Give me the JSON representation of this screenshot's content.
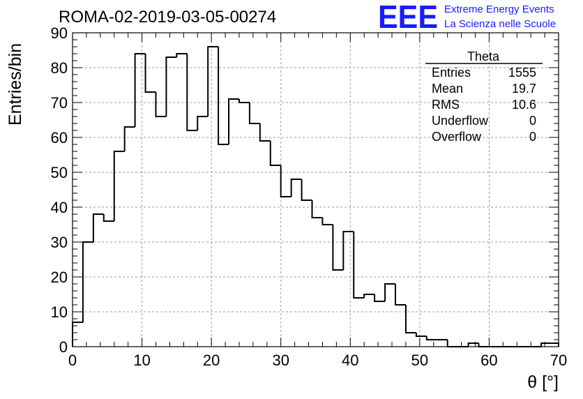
{
  "chart_data": {
    "type": "bar",
    "title": "ROMA-02-2019-03-05-00274",
    "xlabel": "θ [°]",
    "ylabel": "Entries/bin",
    "xlim": [
      0,
      70
    ],
    "ylim": [
      0,
      90
    ],
    "x_ticks": [
      0,
      10,
      20,
      30,
      40,
      50,
      60,
      70
    ],
    "y_ticks": [
      0,
      10,
      20,
      30,
      40,
      50,
      60,
      70,
      80,
      90
    ],
    "grid": true,
    "bin_edges": [
      0,
      1.5,
      3,
      4.5,
      6,
      7.5,
      9,
      10.5,
      12,
      13.5,
      15,
      16.5,
      18,
      19.5,
      21,
      22.5,
      24,
      25.5,
      27,
      28.5,
      30,
      31.5,
      33,
      34.5,
      36,
      37.5,
      39,
      40.5,
      42,
      43.5,
      45,
      46.5,
      48,
      49.5,
      51,
      52.5,
      54,
      55.5,
      57,
      58.5,
      60,
      61.5,
      63,
      64.5,
      66,
      67.5,
      69,
      70
    ],
    "values": [
      7,
      30,
      38,
      36,
      56,
      63,
      84,
      73,
      66,
      83,
      84,
      62,
      66,
      86,
      58,
      71,
      70,
      64,
      59,
      52,
      43,
      48,
      42,
      37,
      35,
      22,
      33,
      14,
      15,
      13,
      18,
      12,
      4,
      3,
      2,
      2,
      0,
      0,
      1,
      0,
      0,
      0,
      0,
      0,
      0,
      1,
      1
    ]
  },
  "stats_box": {
    "title": "Theta",
    "rows": [
      {
        "label": "Entries",
        "value": "1555"
      },
      {
        "label": "Mean",
        "value": "19.7"
      },
      {
        "label": "RMS",
        "value": "10.6"
      },
      {
        "label": "Underflow",
        "value": "0"
      },
      {
        "label": "Overflow",
        "value": "0"
      }
    ]
  },
  "logo": {
    "mark": "EEE",
    "line1": "Extreme Energy Events",
    "line2": "La Scienza nelle Scuole",
    "color": "#1a1aff"
  }
}
